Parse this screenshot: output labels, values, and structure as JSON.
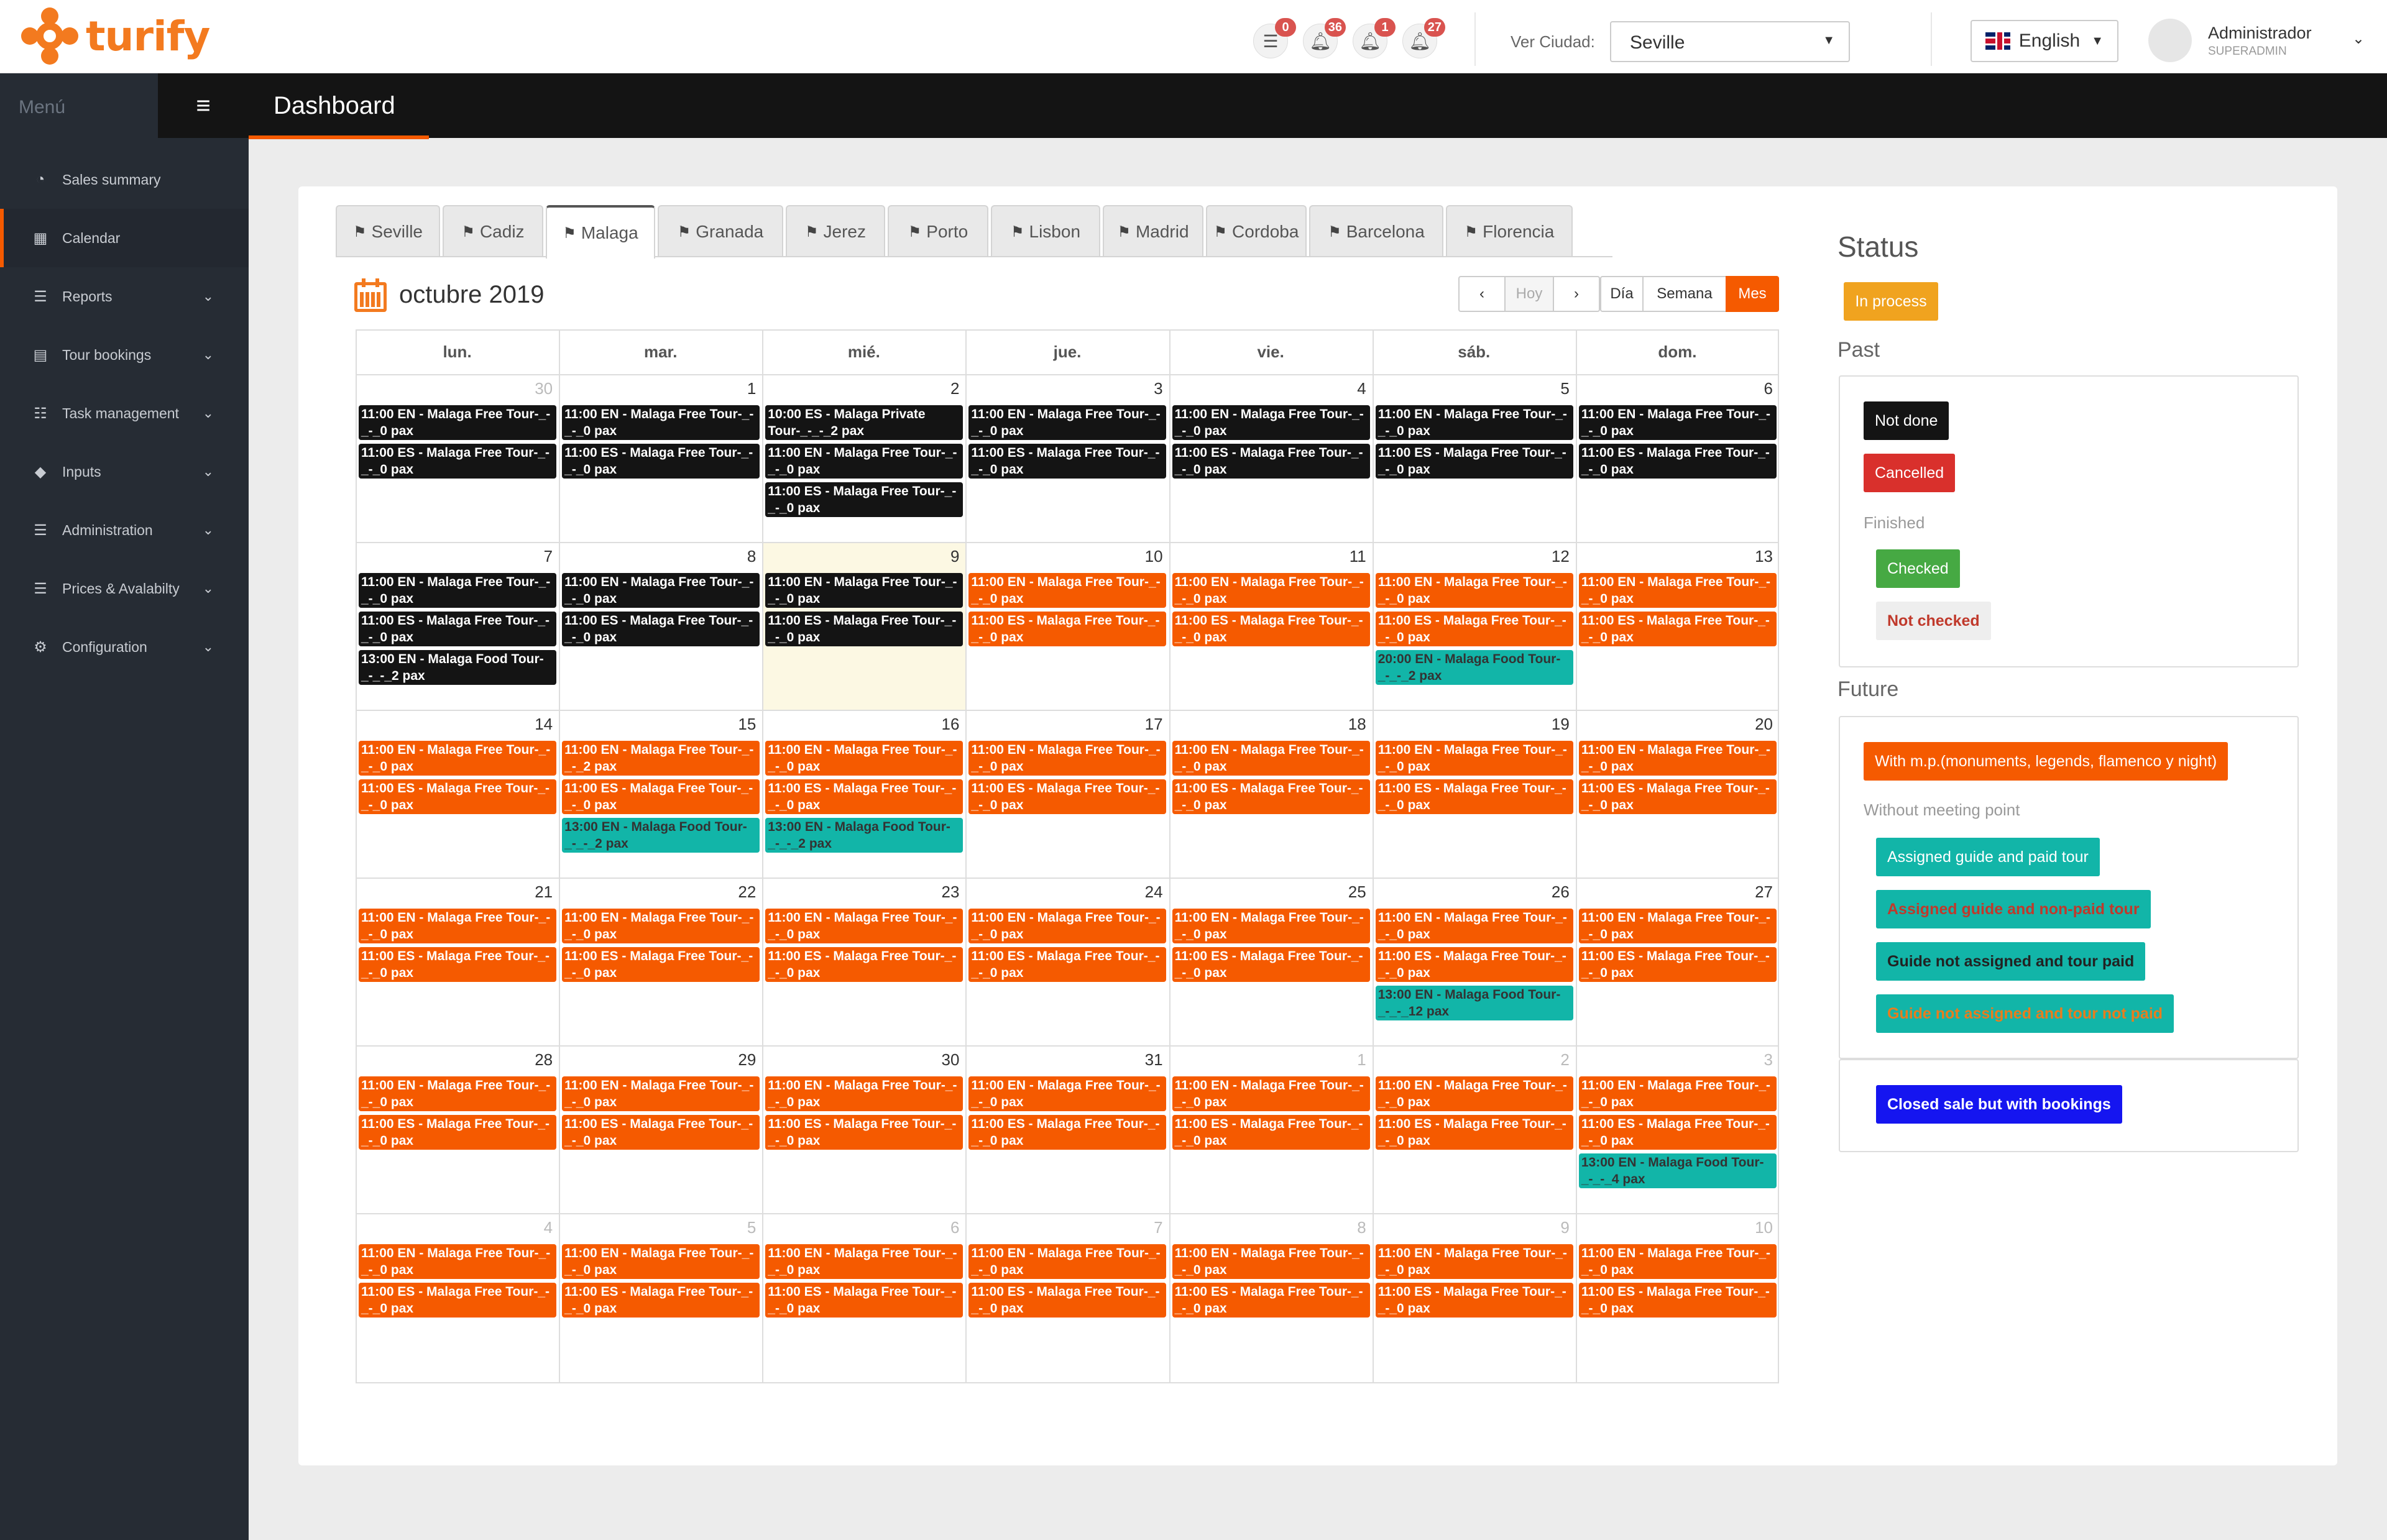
{
  "app": {
    "logo_text": "turify",
    "page_title": "Dashboard"
  },
  "topbar": {
    "notifications": [
      {
        "icon": "list-icon",
        "count": "0"
      },
      {
        "icon": "bell-icon",
        "count": "36"
      },
      {
        "icon": "bell-icon",
        "count": "1"
      },
      {
        "icon": "bell-icon",
        "count": "27"
      }
    ],
    "city_label": "Ver Ciudad:",
    "city_value": "Seville",
    "language": "English",
    "user_name": "Administrador",
    "user_role": "SUPERADMIN"
  },
  "sidebar": {
    "menu_label": "Menú",
    "items": [
      {
        "label": "Sales summary",
        "icon": "pie-chart-icon",
        "expandable": false
      },
      {
        "label": "Calendar",
        "icon": "calendar-icon",
        "expandable": false,
        "active": true
      },
      {
        "label": "Reports",
        "icon": "list-icon",
        "expandable": true
      },
      {
        "label": "Tour bookings",
        "icon": "book-icon",
        "expandable": true
      },
      {
        "label": "Task management",
        "icon": "tasks-icon",
        "expandable": true
      },
      {
        "label": "Inputs",
        "icon": "tag-icon",
        "expandable": true
      },
      {
        "label": "Administration",
        "icon": "list-icon",
        "expandable": true
      },
      {
        "label": "Prices & Avalabilty",
        "icon": "list-icon",
        "expandable": true
      },
      {
        "label": "Configuration",
        "icon": "gears-icon",
        "expandable": true
      }
    ]
  },
  "city_tabs": [
    "Seville",
    "Cadiz",
    "Malaga",
    "Granada",
    "Jerez",
    "Porto",
    "Lisbon",
    "Madrid",
    "Cordoba",
    "Barcelona",
    "Florencia"
  ],
  "active_tab": "Malaga",
  "calendar": {
    "title": "octubre 2019",
    "buttons": {
      "prev": "‹",
      "today": "Hoy",
      "next": "›",
      "day": "Día",
      "week": "Semana",
      "month": "Mes"
    },
    "weekdays": [
      "lun.",
      "mar.",
      "mié.",
      "jue.",
      "vie.",
      "sáb.",
      "dom."
    ],
    "weeks": [
      {
        "days": [
          {
            "n": "30",
            "other": true,
            "events": [
              {
                "t": "11:00 EN - Malaga Free Tour-_-_-_0 pax",
                "c": "black"
              },
              {
                "t": "11:00 ES - Malaga Free Tour-_-_-_0 pax",
                "c": "black"
              }
            ]
          },
          {
            "n": "1",
            "events": [
              {
                "t": "11:00 EN - Malaga Free Tour-_-_-_0 pax",
                "c": "black"
              },
              {
                "t": "11:00 ES - Malaga Free Tour-_-_-_0 pax",
                "c": "black"
              }
            ]
          },
          {
            "n": "2",
            "events": [
              {
                "t": "10:00 ES - Malaga Private Tour-_-_-_2 pax",
                "c": "black"
              },
              {
                "t": "11:00 EN - Malaga Free Tour-_-_-_0 pax",
                "c": "black"
              },
              {
                "t": "11:00 ES - Malaga Free Tour-_-_-_0 pax",
                "c": "black"
              }
            ]
          },
          {
            "n": "3",
            "events": [
              {
                "t": "11:00 EN - Malaga Free Tour-_-_-_0 pax",
                "c": "black"
              },
              {
                "t": "11:00 ES - Malaga Free Tour-_-_-_0 pax",
                "c": "black"
              }
            ]
          },
          {
            "n": "4",
            "events": [
              {
                "t": "11:00 EN - Malaga Free Tour-_-_-_0 pax",
                "c": "black"
              },
              {
                "t": "11:00 ES - Malaga Free Tour-_-_-_0 pax",
                "c": "black"
              }
            ]
          },
          {
            "n": "5",
            "events": [
              {
                "t": "11:00 EN - Malaga Free Tour-_-_-_0 pax",
                "c": "black"
              },
              {
                "t": "11:00 ES - Malaga Free Tour-_-_-_0 pax",
                "c": "black"
              }
            ]
          },
          {
            "n": "6",
            "events": [
              {
                "t": "11:00 EN - Malaga Free Tour-_-_-_0 pax",
                "c": "black"
              },
              {
                "t": "11:00 ES - Malaga Free Tour-_-_-_0 pax",
                "c": "black"
              }
            ]
          }
        ]
      },
      {
        "days": [
          {
            "n": "7",
            "events": [
              {
                "t": "11:00 EN - Malaga Free Tour-_-_-_0 pax",
                "c": "black"
              },
              {
                "t": "11:00 ES - Malaga Free Tour-_-_-_0 pax",
                "c": "black"
              },
              {
                "t": "13:00 EN - Malaga Food Tour-_-_-_2 pax",
                "c": "black"
              }
            ]
          },
          {
            "n": "8",
            "events": [
              {
                "t": "11:00 EN - Malaga Free Tour-_-_-_0 pax",
                "c": "black"
              },
              {
                "t": "11:00 ES - Malaga Free Tour-_-_-_0 pax",
                "c": "black"
              }
            ]
          },
          {
            "n": "9",
            "today": true,
            "events": [
              {
                "t": "11:00 EN - Malaga Free Tour-_-_-_0 pax",
                "c": "black"
              },
              {
                "t": "11:00 ES - Malaga Free Tour-_-_-_0 pax",
                "c": "black"
              }
            ]
          },
          {
            "n": "10",
            "events": [
              {
                "t": "11:00 EN - Malaga Free Tour-_-_-_0 pax",
                "c": "orange"
              },
              {
                "t": "11:00 ES - Malaga Free Tour-_-_-_0 pax",
                "c": "orange"
              }
            ]
          },
          {
            "n": "11",
            "events": [
              {
                "t": "11:00 EN - Malaga Free Tour-_-_-_0 pax",
                "c": "orange"
              },
              {
                "t": "11:00 ES - Malaga Free Tour-_-_-_0 pax",
                "c": "orange"
              }
            ]
          },
          {
            "n": "12",
            "events": [
              {
                "t": "11:00 EN - Malaga Free Tour-_-_-_0 pax",
                "c": "orange"
              },
              {
                "t": "11:00 ES - Malaga Free Tour-_-_-_0 pax",
                "c": "orange"
              },
              {
                "t": "20:00 EN - Malaga Food Tour-_-_-_2 pax",
                "c": "teal"
              }
            ]
          },
          {
            "n": "13",
            "events": [
              {
                "t": "11:00 EN - Malaga Free Tour-_-_-_0 pax",
                "c": "orange"
              },
              {
                "t": "11:00 ES - Malaga Free Tour-_-_-_0 pax",
                "c": "orange"
              }
            ]
          }
        ]
      },
      {
        "days": [
          {
            "n": "14",
            "events": [
              {
                "t": "11:00 EN - Malaga Free Tour-_-_-_0 pax",
                "c": "orange"
              },
              {
                "t": "11:00 ES - Malaga Free Tour-_-_-_0 pax",
                "c": "orange"
              }
            ]
          },
          {
            "n": "15",
            "events": [
              {
                "t": "11:00 EN - Malaga Free Tour-_-_-_2 pax",
                "c": "orange"
              },
              {
                "t": "11:00 ES - Malaga Free Tour-_-_-_0 pax",
                "c": "orange"
              },
              {
                "t": "13:00 EN - Malaga Food Tour-_-_-_2 pax",
                "c": "teal"
              }
            ]
          },
          {
            "n": "16",
            "events": [
              {
                "t": "11:00 EN - Malaga Free Tour-_-_-_0 pax",
                "c": "orange"
              },
              {
                "t": "11:00 ES - Malaga Free Tour-_-_-_0 pax",
                "c": "orange"
              },
              {
                "t": "13:00 EN - Malaga Food Tour-_-_-_2 pax",
                "c": "teal"
              }
            ]
          },
          {
            "n": "17",
            "events": [
              {
                "t": "11:00 EN - Malaga Free Tour-_-_-_0 pax",
                "c": "orange"
              },
              {
                "t": "11:00 ES - Malaga Free Tour-_-_-_0 pax",
                "c": "orange"
              }
            ]
          },
          {
            "n": "18",
            "events": [
              {
                "t": "11:00 EN - Malaga Free Tour-_-_-_0 pax",
                "c": "orange"
              },
              {
                "t": "11:00 ES - Malaga Free Tour-_-_-_0 pax",
                "c": "orange"
              }
            ]
          },
          {
            "n": "19",
            "events": [
              {
                "t": "11:00 EN - Malaga Free Tour-_-_-_0 pax",
                "c": "orange"
              },
              {
                "t": "11:00 ES - Malaga Free Tour-_-_-_0 pax",
                "c": "orange"
              }
            ]
          },
          {
            "n": "20",
            "events": [
              {
                "t": "11:00 EN - Malaga Free Tour-_-_-_0 pax",
                "c": "orange"
              },
              {
                "t": "11:00 ES - Malaga Free Tour-_-_-_0 pax",
                "c": "orange"
              }
            ]
          }
        ]
      },
      {
        "days": [
          {
            "n": "21",
            "events": [
              {
                "t": "11:00 EN - Malaga Free Tour-_-_-_0 pax",
                "c": "orange"
              },
              {
                "t": "11:00 ES - Malaga Free Tour-_-_-_0 pax",
                "c": "orange"
              }
            ]
          },
          {
            "n": "22",
            "events": [
              {
                "t": "11:00 EN - Malaga Free Tour-_-_-_0 pax",
                "c": "orange"
              },
              {
                "t": "11:00 ES - Malaga Free Tour-_-_-_0 pax",
                "c": "orange"
              }
            ]
          },
          {
            "n": "23",
            "events": [
              {
                "t": "11:00 EN - Malaga Free Tour-_-_-_0 pax",
                "c": "orange"
              },
              {
                "t": "11:00 ES - Malaga Free Tour-_-_-_0 pax",
                "c": "orange"
              }
            ]
          },
          {
            "n": "24",
            "events": [
              {
                "t": "11:00 EN - Malaga Free Tour-_-_-_0 pax",
                "c": "orange"
              },
              {
                "t": "11:00 ES - Malaga Free Tour-_-_-_0 pax",
                "c": "orange"
              }
            ]
          },
          {
            "n": "25",
            "events": [
              {
                "t": "11:00 EN - Malaga Free Tour-_-_-_0 pax",
                "c": "orange"
              },
              {
                "t": "11:00 ES - Malaga Free Tour-_-_-_0 pax",
                "c": "orange"
              }
            ]
          },
          {
            "n": "26",
            "events": [
              {
                "t": "11:00 EN - Malaga Free Tour-_-_-_0 pax",
                "c": "orange"
              },
              {
                "t": "11:00 ES - Malaga Free Tour-_-_-_0 pax",
                "c": "orange"
              },
              {
                "t": "13:00 EN - Malaga Food Tour-_-_-_12 pax",
                "c": "teal"
              }
            ]
          },
          {
            "n": "27",
            "events": [
              {
                "t": "11:00 EN - Malaga Free Tour-_-_-_0 pax",
                "c": "orange"
              },
              {
                "t": "11:00 ES - Malaga Free Tour-_-_-_0 pax",
                "c": "orange"
              }
            ]
          }
        ]
      },
      {
        "days": [
          {
            "n": "28",
            "events": [
              {
                "t": "11:00 EN - Malaga Free Tour-_-_-_0 pax",
                "c": "orange"
              },
              {
                "t": "11:00 ES - Malaga Free Tour-_-_-_0 pax",
                "c": "orange"
              }
            ]
          },
          {
            "n": "29",
            "events": [
              {
                "t": "11:00 EN - Malaga Free Tour-_-_-_0 pax",
                "c": "orange"
              },
              {
                "t": "11:00 ES - Malaga Free Tour-_-_-_0 pax",
                "c": "orange"
              }
            ]
          },
          {
            "n": "30",
            "events": [
              {
                "t": "11:00 EN - Malaga Free Tour-_-_-_0 pax",
                "c": "orange"
              },
              {
                "t": "11:00 ES - Malaga Free Tour-_-_-_0 pax",
                "c": "orange"
              }
            ]
          },
          {
            "n": "31",
            "events": [
              {
                "t": "11:00 EN - Malaga Free Tour-_-_-_0 pax",
                "c": "orange"
              },
              {
                "t": "11:00 ES - Malaga Free Tour-_-_-_0 pax",
                "c": "orange"
              }
            ]
          },
          {
            "n": "1",
            "other": true,
            "events": [
              {
                "t": "11:00 EN - Malaga Free Tour-_-_-_0 pax",
                "c": "orange"
              },
              {
                "t": "11:00 ES - Malaga Free Tour-_-_-_0 pax",
                "c": "orange"
              }
            ]
          },
          {
            "n": "2",
            "other": true,
            "events": [
              {
                "t": "11:00 EN - Malaga Free Tour-_-_-_0 pax",
                "c": "orange"
              },
              {
                "t": "11:00 ES - Malaga Free Tour-_-_-_0 pax",
                "c": "orange"
              }
            ]
          },
          {
            "n": "3",
            "other": true,
            "events": [
              {
                "t": "11:00 EN - Malaga Free Tour-_-_-_0 pax",
                "c": "orange"
              },
              {
                "t": "11:00 ES - Malaga Free Tour-_-_-_0 pax",
                "c": "orange"
              },
              {
                "t": "13:00 EN - Malaga Food Tour-_-_-_4 pax",
                "c": "teal"
              }
            ]
          }
        ]
      },
      {
        "days": [
          {
            "n": "4",
            "other": true,
            "events": [
              {
                "t": "11:00 EN - Malaga Free Tour-_-_-_0 pax",
                "c": "orange"
              },
              {
                "t": "11:00 ES - Malaga Free Tour-_-_-_0 pax",
                "c": "orange"
              }
            ]
          },
          {
            "n": "5",
            "other": true,
            "events": [
              {
                "t": "11:00 EN - Malaga Free Tour-_-_-_0 pax",
                "c": "orange"
              },
              {
                "t": "11:00 ES - Malaga Free Tour-_-_-_0 pax",
                "c": "orange"
              }
            ]
          },
          {
            "n": "6",
            "other": true,
            "events": [
              {
                "t": "11:00 EN - Malaga Free Tour-_-_-_0 pax",
                "c": "orange"
              },
              {
                "t": "11:00 ES - Malaga Free Tour-_-_-_0 pax",
                "c": "orange"
              }
            ]
          },
          {
            "n": "7",
            "other": true,
            "events": [
              {
                "t": "11:00 EN - Malaga Free Tour-_-_-_0 pax",
                "c": "orange"
              },
              {
                "t": "11:00 ES - Malaga Free Tour-_-_-_0 pax",
                "c": "orange"
              }
            ]
          },
          {
            "n": "8",
            "other": true,
            "events": [
              {
                "t": "11:00 EN - Malaga Free Tour-_-_-_0 pax",
                "c": "orange"
              },
              {
                "t": "11:00 ES - Malaga Free Tour-_-_-_0 pax",
                "c": "orange"
              }
            ]
          },
          {
            "n": "9",
            "other": true,
            "events": [
              {
                "t": "11:00 EN - Malaga Free Tour-_-_-_0 pax",
                "c": "orange"
              },
              {
                "t": "11:00 ES - Malaga Free Tour-_-_-_0 pax",
                "c": "orange"
              }
            ]
          },
          {
            "n": "10",
            "other": true,
            "events": [
              {
                "t": "11:00 EN - Malaga Free Tour-_-_-_0 pax",
                "c": "orange"
              },
              {
                "t": "11:00 ES - Malaga Free Tour-_-_-_0 pax",
                "c": "orange"
              }
            ]
          }
        ]
      }
    ]
  },
  "status": {
    "title": "Status",
    "in_process": "In process",
    "past_heading": "Past",
    "not_done": "Not done",
    "cancelled": "Cancelled",
    "finished_label": "Finished",
    "checked": "Checked",
    "not_checked": "Not checked",
    "future_heading": "Future",
    "with_mp": "With m.p.(monuments, legends, flamenco y night)",
    "without_mp_label": "Without meeting point",
    "assigned_paid": "Assigned guide and paid tour",
    "assigned_nonpaid": "Assigned guide and non-paid tour",
    "notassigned_paid": "Guide not assigned and tour paid",
    "notassigned_notpaid": "Guide not assigned and tour not paid",
    "closed_sale": "Closed sale but with bookings"
  },
  "colors": {
    "accent": "#f55a00",
    "past_black": "#141414",
    "teal": "#12b5a8",
    "in_process": "#f0a31f",
    "cancelled": "#d9302c",
    "checked": "#46a943",
    "closed_sale": "#1515f0"
  }
}
